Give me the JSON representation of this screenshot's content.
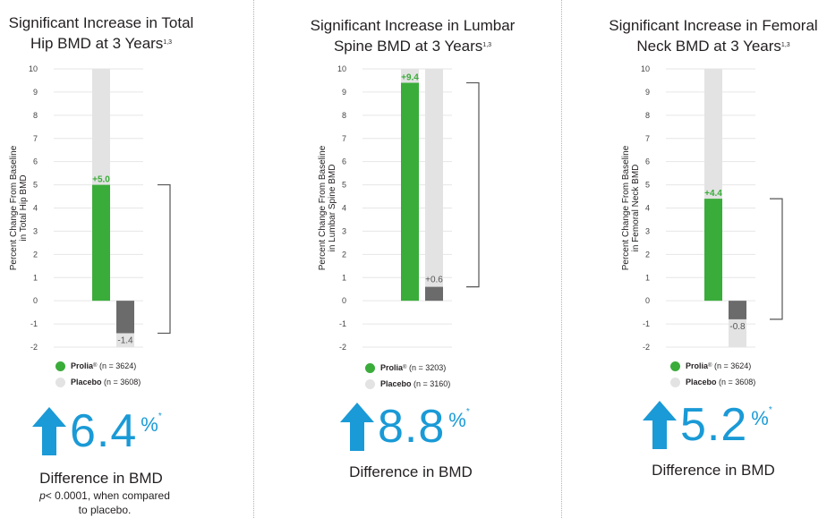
{
  "colors": {
    "prolia": "#3aac3a",
    "placebo": "#e3e3e3",
    "negative": "#6b6b6b",
    "accent": "#1a9ad6",
    "grid": "#e6e6e6"
  },
  "panels": [
    {
      "title_line1": "Significant Increase in Total",
      "title_line2": "Hip BMD at 3 Years",
      "title_sup": "1,3",
      "big_value": "6.4",
      "big_unit": "%",
      "big_sup": "*",
      "diff_label": "Difference in BMD",
      "footnote_italic": "p",
      "footnote_rest": "< 0.0001, when compared",
      "footnote_line2": "to placebo."
    },
    {
      "title_line1": "Significant Increase in Lumbar",
      "title_line2": "Spine BMD at 3 Years",
      "title_sup": "1,3",
      "big_value": "8.8",
      "big_unit": "%",
      "big_sup": "*",
      "diff_label": "Difference in BMD"
    },
    {
      "title_line1": "Significant Increase in Femoral",
      "title_line2": "Neck BMD at 3 Years",
      "title_sup": "1,3",
      "big_value": "5.2",
      "big_unit": "%",
      "big_sup": "*",
      "diff_label": "Difference in BMD"
    }
  ],
  "chart_data": [
    {
      "type": "bar",
      "ylabel_line1": "Percent Change From Baseline",
      "ylabel_line2": "in Total Hip BMD",
      "ylim": [
        -2,
        10
      ],
      "yticks": [
        -2,
        -1,
        0,
        1,
        2,
        3,
        4,
        5,
        6,
        7,
        8,
        9,
        10
      ],
      "series": [
        {
          "name": "Prolia® (n = 3624)",
          "legend_name": "Prolia",
          "legend_sup": "®",
          "legend_n": "(n = 3624)",
          "value": 5.0,
          "label": "+5.0"
        },
        {
          "name": "Placebo (n = 3608)",
          "legend_name": "Placebo",
          "legend_sup": "",
          "legend_n": "(n = 3608)",
          "value": -1.4,
          "label": "-1.4"
        }
      ],
      "bracket_range": [
        -1.4,
        5.0
      ]
    },
    {
      "type": "bar",
      "ylabel_line1": "Percent Change From Baseline",
      "ylabel_line2": "in Lumbar Spine BMD",
      "ylim": [
        -2,
        10
      ],
      "yticks": [
        -2,
        -1,
        0,
        1,
        2,
        3,
        4,
        5,
        6,
        7,
        8,
        9,
        10
      ],
      "series": [
        {
          "name": "Prolia® (n = 3203)",
          "legend_name": "Prolia",
          "legend_sup": "®",
          "legend_n": "(n = 3203)",
          "value": 9.4,
          "label": "+9.4"
        },
        {
          "name": "Placebo (n = 3160)",
          "legend_name": "Placebo",
          "legend_sup": "",
          "legend_n": "(n = 3160)",
          "value": 0.6,
          "label": "+0.6"
        }
      ],
      "bracket_range": [
        0.6,
        9.4
      ]
    },
    {
      "type": "bar",
      "ylabel_line1": "Percent Change From Baseline",
      "ylabel_line2": "in Femoral Neck BMD",
      "ylim": [
        -2,
        10
      ],
      "yticks": [
        -2,
        -1,
        0,
        1,
        2,
        3,
        4,
        5,
        6,
        7,
        8,
        9,
        10
      ],
      "series": [
        {
          "name": "Prolia® (n = 3624)",
          "legend_name": "Prolia",
          "legend_sup": "®",
          "legend_n": "(n = 3624)",
          "value": 4.4,
          "label": "+4.4"
        },
        {
          "name": "Placebo (n = 3608)",
          "legend_name": "Placebo",
          "legend_sup": "",
          "legend_n": "(n = 3608)",
          "value": -0.8,
          "label": "-0.8"
        }
      ],
      "bracket_range": [
        -0.8,
        4.4
      ]
    }
  ]
}
